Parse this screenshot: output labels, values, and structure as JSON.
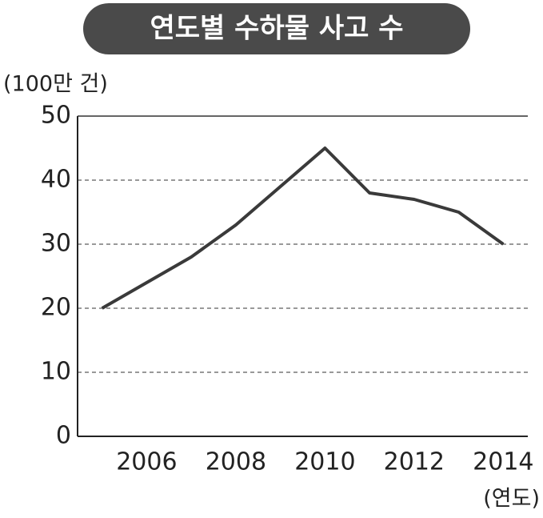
{
  "chart_data": {
    "type": "line",
    "title": "연도별 수하물 사고 수",
    "y_label": "(100만 건)",
    "x_label": "(연도)",
    "x": [
      2005,
      2006,
      2007,
      2008,
      2009,
      2010,
      2011,
      2012,
      2013,
      2014
    ],
    "series": [
      {
        "name": "수하물 사고 수",
        "color": "#3a3a3a",
        "values": [
          20,
          24,
          28,
          33,
          39,
          45,
          38,
          37,
          35,
          30
        ]
      }
    ],
    "xlim": [
      2004.45,
      2014.55
    ],
    "xticks": [
      2006,
      2008,
      2010,
      2012,
      2014
    ],
    "ylim": [
      0,
      50
    ],
    "yticks": [
      0,
      10,
      20,
      30,
      40,
      50
    ],
    "grid": true
  }
}
